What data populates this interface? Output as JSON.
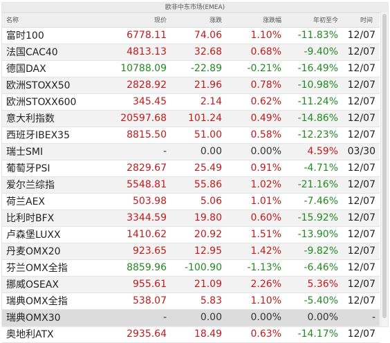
{
  "panel": {
    "title": "欧非中东市场(EMEA)"
  },
  "headers": {
    "name": "名称",
    "price": "现价",
    "change": "涨跌",
    "change_pct": "涨跌幅",
    "ytd": "年初至今",
    "time": "时间"
  },
  "colors": {
    "up": "#c01a1a",
    "down": "#1f8a1f",
    "flat": "#333333"
  },
  "rows": [
    {
      "name": "富时100",
      "price": "6778.11",
      "change": "74.06",
      "change_pct": "1.10%",
      "ytd": "-11.83%",
      "time": "12/07",
      "price_dir": "up",
      "change_dir": "up",
      "pct_dir": "up",
      "ytd_dir": "down"
    },
    {
      "name": "法国CAC40",
      "price": "4813.13",
      "change": "32.68",
      "change_pct": "0.68%",
      "ytd": "-9.40%",
      "time": "12/07",
      "price_dir": "up",
      "change_dir": "up",
      "pct_dir": "up",
      "ytd_dir": "down"
    },
    {
      "name": "德国DAX",
      "price": "10788.09",
      "change": "-22.89",
      "change_pct": "-0.21%",
      "ytd": "-16.49%",
      "time": "12/07",
      "price_dir": "down",
      "change_dir": "down",
      "pct_dir": "down",
      "ytd_dir": "down"
    },
    {
      "name": "欧洲STOXX50",
      "price": "2828.92",
      "change": "21.96",
      "change_pct": "0.78%",
      "ytd": "-10.98%",
      "time": "12/07",
      "price_dir": "up",
      "change_dir": "up",
      "pct_dir": "up",
      "ytd_dir": "down"
    },
    {
      "name": "欧洲STOXX600",
      "price": "345.45",
      "change": "2.14",
      "change_pct": "0.62%",
      "ytd": "-11.24%",
      "time": "12/07",
      "price_dir": "up",
      "change_dir": "up",
      "pct_dir": "up",
      "ytd_dir": "down"
    },
    {
      "name": "意大利指数",
      "price": "20597.68",
      "change": "101.24",
      "change_pct": "0.49%",
      "ytd": "-14.86%",
      "time": "12/07",
      "price_dir": "up",
      "change_dir": "up",
      "pct_dir": "up",
      "ytd_dir": "down"
    },
    {
      "name": "西班牙IBEX35",
      "price": "8815.50",
      "change": "51.00",
      "change_pct": "0.58%",
      "ytd": "-12.23%",
      "time": "12/07",
      "price_dir": "up",
      "change_dir": "up",
      "pct_dir": "up",
      "ytd_dir": "down"
    },
    {
      "name": "瑞士SMI",
      "price": "-",
      "change": "0.00",
      "change_pct": "0.00%",
      "ytd": "4.59%",
      "time": "03/30",
      "price_dir": "flat",
      "change_dir": "flat",
      "pct_dir": "flat",
      "ytd_dir": "up"
    },
    {
      "name": "葡萄牙PSI",
      "price": "2829.67",
      "change": "25.49",
      "change_pct": "0.91%",
      "ytd": "-4.71%",
      "time": "12/07",
      "price_dir": "up",
      "change_dir": "up",
      "pct_dir": "up",
      "ytd_dir": "down"
    },
    {
      "name": "爱尔兰综指",
      "price": "5548.81",
      "change": "55.86",
      "change_pct": "1.02%",
      "ytd": "-21.16%",
      "time": "12/07",
      "price_dir": "up",
      "change_dir": "up",
      "pct_dir": "up",
      "ytd_dir": "down"
    },
    {
      "name": "荷兰AEX",
      "price": "503.98",
      "change": "5.06",
      "change_pct": "1.01%",
      "ytd": "-7.46%",
      "time": "12/07",
      "price_dir": "up",
      "change_dir": "up",
      "pct_dir": "up",
      "ytd_dir": "down"
    },
    {
      "name": "比利时BFX",
      "price": "3344.59",
      "change": "19.80",
      "change_pct": "0.60%",
      "ytd": "-15.92%",
      "time": "12/07",
      "price_dir": "up",
      "change_dir": "up",
      "pct_dir": "up",
      "ytd_dir": "down"
    },
    {
      "name": "卢森堡LUXX",
      "price": "1410.62",
      "change": "20.92",
      "change_pct": "1.51%",
      "ytd": "-13.90%",
      "time": "12/07",
      "price_dir": "up",
      "change_dir": "up",
      "pct_dir": "up",
      "ytd_dir": "down"
    },
    {
      "name": "丹麦OMX20",
      "price": "923.65",
      "change": "12.95",
      "change_pct": "1.42%",
      "ytd": "-9.82%",
      "time": "12/07",
      "price_dir": "up",
      "change_dir": "up",
      "pct_dir": "up",
      "ytd_dir": "down"
    },
    {
      "name": "芬兰OMX全指",
      "price": "8859.96",
      "change": "-100.90",
      "change_pct": "-1.13%",
      "ytd": "-6.46%",
      "time": "12/07",
      "price_dir": "down",
      "change_dir": "down",
      "pct_dir": "down",
      "ytd_dir": "down"
    },
    {
      "name": "挪威OSEAX",
      "price": "955.61",
      "change": "21.09",
      "change_pct": "2.26%",
      "ytd": "5.36%",
      "time": "12/07",
      "price_dir": "up",
      "change_dir": "up",
      "pct_dir": "up",
      "ytd_dir": "up"
    },
    {
      "name": "瑞典OMX全指",
      "price": "538.07",
      "change": "5.83",
      "change_pct": "1.10%",
      "ytd": "-5.40%",
      "time": "12/07",
      "price_dir": "up",
      "change_dir": "up",
      "pct_dir": "up",
      "ytd_dir": "down"
    },
    {
      "name": "瑞典OMX30",
      "price": "-",
      "change": "0.00",
      "change_pct": "0.00%",
      "ytd": "0.00%",
      "time": "-",
      "price_dir": "flat",
      "change_dir": "flat",
      "pct_dir": "flat",
      "ytd_dir": "flat",
      "selected": true
    },
    {
      "name": "奥地利ATX",
      "price": "2935.64",
      "change": "18.49",
      "change_pct": "0.63%",
      "ytd": "-14.17%",
      "time": "12/07",
      "price_dir": "up",
      "change_dir": "up",
      "pct_dir": "up",
      "ytd_dir": "down"
    }
  ]
}
